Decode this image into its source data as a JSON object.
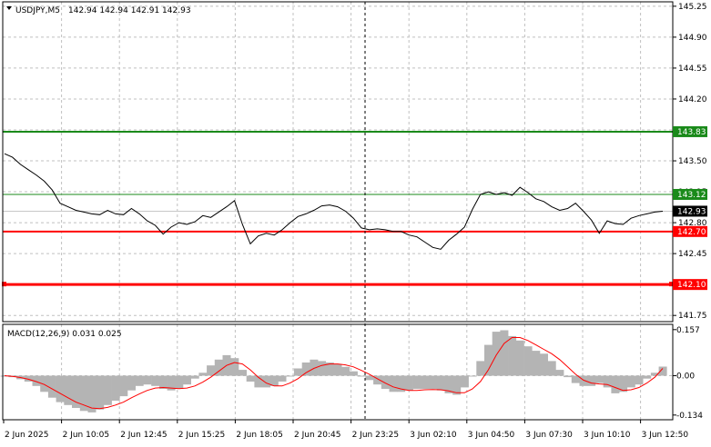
{
  "header": {
    "symbol": "USDJPY,M5",
    "ohlc": "142.94 142.94 142.91 142.93"
  },
  "macd_header": {
    "label": "MACD(12,26,9) 0.031 0.025"
  },
  "colors": {
    "price_line": "#000000",
    "resistance": "#1a8a1a",
    "support": "#ff0000",
    "macd_hist": "#b4b4b4",
    "macd_signal": "#ff0000",
    "current_price_box": "#000000"
  },
  "chart_data": [
    {
      "type": "line",
      "title": "USDJPY,M5",
      "ylim": [
        141.68,
        145.3
      ],
      "y_ticks": [
        "145.25",
        "144.90",
        "144.55",
        "144.20",
        "143.85",
        "143.50",
        "143.15",
        "142.80",
        "142.45",
        "142.10",
        "141.75"
      ],
      "x_ticks": [
        "2 Jun 2025",
        "2 Jun 10:05",
        "2 Jun 12:45",
        "2 Jun 15:25",
        "2 Jun 18:05",
        "2 Jun 20:45",
        "2 Jun 23:25",
        "3 Jun 02:10",
        "3 Jun 04:50",
        "3 Jun 07:30",
        "3 Jun 10:10",
        "3 Jun 12:50"
      ],
      "grid": true,
      "current_price": "142.93",
      "horizontal_levels": [
        {
          "value": 143.83,
          "label": "143.83",
          "color": "#1a8a1a",
          "width": 2
        },
        {
          "value": 143.12,
          "label": "143.12",
          "color": "#1a8a1a",
          "width": 1
        },
        {
          "value": 142.7,
          "label": "142.70",
          "color": "#ff0000",
          "width": 2
        },
        {
          "value": 142.1,
          "label": "142.10",
          "color": "#ff0000",
          "width": 3
        }
      ],
      "vertical_marker_index": 14,
      "series": [
        {
          "values": [
            143.58,
            143.54,
            143.46,
            143.4,
            143.34,
            143.27,
            143.17,
            143.02,
            142.98,
            142.94,
            142.92,
            142.9,
            142.89,
            142.94,
            142.9,
            142.89,
            142.96,
            142.9,
            142.82,
            142.77,
            142.67,
            142.75,
            142.8,
            142.78,
            142.81,
            142.88,
            142.86,
            142.92,
            142.98,
            143.05,
            142.78,
            142.56,
            142.65,
            142.68,
            142.66,
            142.72,
            142.8,
            142.87,
            142.9,
            142.94,
            142.99,
            143.0,
            142.98,
            142.93,
            142.85,
            142.74,
            142.72,
            142.73,
            142.72,
            142.7,
            142.7,
            142.66,
            142.64,
            142.58,
            142.52,
            142.5,
            142.6,
            142.67,
            142.75,
            142.95,
            143.12,
            143.15,
            143.12,
            143.14,
            143.11,
            143.2,
            143.14,
            143.07,
            143.04,
            142.98,
            142.94,
            142.96,
            143.02,
            142.93,
            142.83,
            142.68,
            142.82,
            142.79,
            142.78,
            142.85,
            142.88,
            142.9,
            142.92,
            142.93
          ]
        }
      ]
    },
    {
      "type": "bar",
      "title": "MACD(12,26,9) 0.031 0.025",
      "ylim": [
        -0.15,
        0.175
      ],
      "y_ticks": [
        "0.157",
        "0.00",
        "-0.134"
      ],
      "series": [
        {
          "name": "MACD",
          "values": [
            0.0,
            -0.005,
            -0.012,
            -0.02,
            -0.035,
            -0.055,
            -0.075,
            -0.09,
            -0.1,
            -0.11,
            -0.12,
            -0.125,
            -0.115,
            -0.1,
            -0.085,
            -0.07,
            -0.05,
            -0.035,
            -0.03,
            -0.035,
            -0.045,
            -0.05,
            -0.045,
            -0.03,
            -0.01,
            0.01,
            0.035,
            0.055,
            0.07,
            0.06,
            0.02,
            -0.02,
            -0.04,
            -0.04,
            -0.035,
            -0.02,
            0.0,
            0.025,
            0.045,
            0.055,
            0.05,
            0.045,
            0.04,
            0.03,
            0.015,
            0.0,
            -0.015,
            -0.03,
            -0.045,
            -0.055,
            -0.055,
            -0.05,
            -0.045,
            -0.045,
            -0.045,
            -0.05,
            -0.06,
            -0.065,
            -0.04,
            0.0,
            0.05,
            0.105,
            0.15,
            0.155,
            0.135,
            0.12,
            0.1,
            0.085,
            0.075,
            0.05,
            0.02,
            -0.005,
            -0.025,
            -0.035,
            -0.035,
            -0.025,
            -0.04,
            -0.06,
            -0.055,
            -0.04,
            -0.03,
            -0.01,
            0.01,
            0.031
          ]
        },
        {
          "name": "Signal",
          "values": [
            0.0,
            -0.002,
            -0.006,
            -0.012,
            -0.02,
            -0.03,
            -0.045,
            -0.06,
            -0.075,
            -0.09,
            -0.1,
            -0.11,
            -0.112,
            -0.108,
            -0.1,
            -0.09,
            -0.075,
            -0.062,
            -0.05,
            -0.042,
            -0.04,
            -0.042,
            -0.044,
            -0.042,
            -0.035,
            -0.022,
            -0.005,
            0.015,
            0.035,
            0.045,
            0.04,
            0.02,
            -0.005,
            -0.025,
            -0.035,
            -0.035,
            -0.025,
            -0.01,
            0.01,
            0.025,
            0.035,
            0.04,
            0.04,
            0.037,
            0.03,
            0.018,
            0.005,
            -0.01,
            -0.025,
            -0.038,
            -0.045,
            -0.05,
            -0.05,
            -0.048,
            -0.047,
            -0.048,
            -0.052,
            -0.058,
            -0.058,
            -0.045,
            -0.02,
            0.02,
            0.07,
            0.11,
            0.13,
            0.13,
            0.12,
            0.105,
            0.09,
            0.075,
            0.055,
            0.03,
            0.005,
            -0.015,
            -0.025,
            -0.028,
            -0.03,
            -0.04,
            -0.05,
            -0.048,
            -0.04,
            -0.025,
            -0.005,
            0.025
          ]
        }
      ]
    }
  ]
}
